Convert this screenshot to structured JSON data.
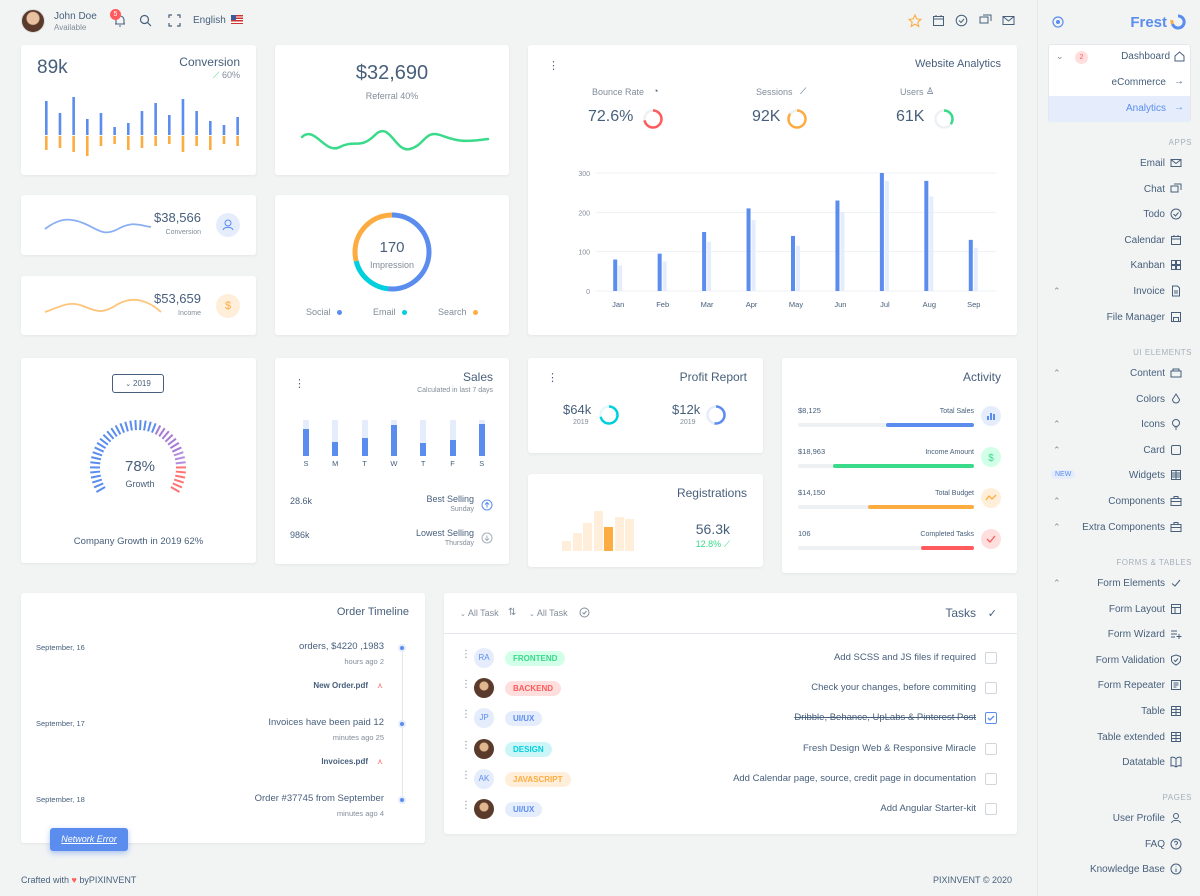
{
  "user": {
    "name": "John Doe",
    "status": "Available",
    "notifications": "5"
  },
  "topbar": {
    "language": "English"
  },
  "brand": {
    "name": "Frest"
  },
  "sidebar": {
    "dashboard": {
      "label": "Dashboard",
      "badge": "2"
    },
    "items_top": [
      {
        "label": "eCommerce"
      },
      {
        "label": "Analytics"
      }
    ],
    "apps_header": "APPS",
    "apps": [
      {
        "label": "Email",
        "icon": "mail-icon"
      },
      {
        "label": "Chat",
        "icon": "chat-icon"
      },
      {
        "label": "Todo",
        "icon": "check-circle-icon"
      },
      {
        "label": "Calendar",
        "icon": "calendar-icon"
      },
      {
        "label": "Kanban",
        "icon": "grid-icon"
      },
      {
        "label": "Invoice",
        "icon": "file-icon"
      },
      {
        "label": "File Manager",
        "icon": "save-icon"
      }
    ],
    "ui_header": "UI ELEMENTS",
    "ui": [
      {
        "label": "Content",
        "icon": "content-icon"
      },
      {
        "label": "Colors",
        "icon": "droplet-icon"
      },
      {
        "label": "Icons",
        "icon": "bulb-icon"
      },
      {
        "label": "Card",
        "icon": "square-icon"
      },
      {
        "label": "Widgets",
        "icon": "widgets-icon",
        "badge": "NEW"
      },
      {
        "label": "Components",
        "icon": "briefcase-icon"
      },
      {
        "label": "Extra Components",
        "icon": "briefcase-icon"
      }
    ],
    "forms_header": "FORMS & TABLES",
    "forms": [
      {
        "label": "Form Elements",
        "icon": "check-icon"
      },
      {
        "label": "Form Layout",
        "icon": "layout-icon"
      },
      {
        "label": "Form Wizard",
        "icon": "list-plus-icon"
      },
      {
        "label": "Form Validation",
        "icon": "shield-icon"
      },
      {
        "label": "Form Repeater",
        "icon": "repeater-icon"
      },
      {
        "label": "Table",
        "icon": "table-icon"
      },
      {
        "label": "Table extended",
        "icon": "table-icon"
      },
      {
        "label": "Datatable",
        "icon": "book-icon"
      }
    ],
    "pages_header": "PAGES",
    "pages": [
      {
        "label": "User Profile",
        "icon": "user-icon"
      },
      {
        "label": "FAQ",
        "icon": "help-icon"
      },
      {
        "label": "Knowledge Base",
        "icon": "info-icon"
      }
    ]
  },
  "conversion": {
    "value": "89k",
    "title": "Conversion",
    "pct": "60%",
    "bars_up": [
      34,
      22,
      38,
      16,
      22,
      8,
      12,
      24,
      32,
      20,
      36,
      24,
      14,
      10,
      18
    ],
    "bars_down": [
      14,
      12,
      16,
      20,
      10,
      8,
      14,
      12,
      10,
      8,
      16,
      10,
      14,
      8,
      10
    ]
  },
  "referral": {
    "value": "$32,690",
    "label": "Referral 40%"
  },
  "conv_small": {
    "value": "$38,566",
    "label": "Conversion"
  },
  "income": {
    "value": "$53,659",
    "label": "Income"
  },
  "impression": {
    "value": "170",
    "label": "Impression",
    "legend": [
      "Social",
      "Email",
      "Search"
    ]
  },
  "analytics": {
    "title": "Website Analytics",
    "stats": [
      {
        "label": "Bounce Rate",
        "value": "72.6%",
        "color": "#ff5b5c",
        "frac": 0.72
      },
      {
        "label": "Sessions",
        "value": "92K",
        "color": "#fdac41",
        "frac": 0.85
      },
      {
        "label": "Users",
        "value": "61K",
        "color": "#39da8a",
        "frac": 0.35
      }
    ]
  },
  "chart_data": {
    "type": "bar",
    "categories": [
      "Jan",
      "Feb",
      "Mar",
      "Apr",
      "May",
      "Jun",
      "Jul",
      "Aug",
      "Sep"
    ],
    "series": [
      {
        "values": [
          80,
          95,
          150,
          210,
          140,
          230,
          300,
          280,
          130
        ]
      },
      {
        "values": [
          65,
          75,
          125,
          180,
          115,
          200,
          280,
          240,
          110
        ]
      }
    ],
    "yticks": [
      "0",
      "100",
      "200",
      "300"
    ],
    "ylim": [
      0,
      300
    ],
    "grid": true
  },
  "growth": {
    "year": "2019",
    "value": "78%",
    "label": "Growth",
    "caption": "Company Growth in 2019 62%"
  },
  "sales": {
    "title": "Sales",
    "subtitle": "Calculated in last 7 days",
    "days": [
      "S",
      "M",
      "T",
      "W",
      "T",
      "F",
      "S"
    ],
    "fill": [
      0.75,
      0.4,
      0.5,
      0.85,
      0.35,
      0.45,
      0.9
    ],
    "best_value": "28.6k",
    "best_label": "Best Selling",
    "best_sub": "Sunday",
    "low_value": "986k",
    "low_label": "Lowest Selling",
    "low_sub": "Thursday"
  },
  "profit": {
    "title": "Profit Report",
    "a_value": "$64k",
    "a_year": "2019",
    "b_value": "$12k",
    "b_year": "2019"
  },
  "registrations": {
    "title": "Registrations",
    "value": "56.3k",
    "pct": "12.8%",
    "bars": [
      0.25,
      0.45,
      0.7,
      1.0,
      0.6,
      0.85,
      0.8
    ]
  },
  "activity": {
    "title": "Activity",
    "items": [
      {
        "value": "$8,125",
        "label": "Total Sales",
        "frac": 0.5,
        "color": "#5a8dee"
      },
      {
        "value": "$18,963",
        "label": "Income Amount",
        "frac": 0.8,
        "color": "#39da8a"
      },
      {
        "value": "$14,150",
        "label": "Total Budget",
        "frac": 0.6,
        "color": "#fdac41"
      },
      {
        "value": "106",
        "label": "Completed Tasks",
        "frac": 0.3,
        "color": "#ff5b5c"
      }
    ]
  },
  "timeline": {
    "title": "Order Timeline",
    "items": [
      {
        "date": "September, 16",
        "text": "orders, $4220 ,1983",
        "time": "hours ago 2",
        "file": "New Order.pdf"
      },
      {
        "date": "September, 17",
        "text": "Invoices have been paid 12",
        "time": "minutes ago 25",
        "file": "Invoices.pdf"
      },
      {
        "date": "September, 18",
        "text": "Order #37745 from September",
        "time": "minutes ago 4",
        "file": ""
      }
    ],
    "toast": "Network Error"
  },
  "tasks": {
    "title": "Tasks",
    "filter1": "All Task",
    "filter2": "All Task",
    "rows": [
      {
        "avatar": "RA",
        "chip": "FRONTEND",
        "chip_bg": "#d2ffe8",
        "chip_fg": "#39da8a",
        "text": "Add SCSS and JS files if required",
        "done": false
      },
      {
        "avatar": "",
        "chip": "BACKEND",
        "chip_bg": "#ffdede",
        "chip_fg": "#ff5b5c",
        "text": "Check your changes, before commiting",
        "done": false
      },
      {
        "avatar": "JP",
        "chip": "UI/UX",
        "chip_bg": "#e5edfc",
        "chip_fg": "#5a8dee",
        "text": "Dribble, Behance, UpLabs & Pinterest Post",
        "done": true
      },
      {
        "avatar": "",
        "chip": "DESIGN",
        "chip_bg": "#ccf5f8",
        "chip_fg": "#00cfdd",
        "text": "Fresh Design Web & Responsive Miracle",
        "done": false
      },
      {
        "avatar": "AK",
        "chip": "JAVASCRIPT",
        "chip_bg": "#ffeed9",
        "chip_fg": "#fdac41",
        "text": "Add Calendar page, source, credit page in documentation",
        "done": false
      },
      {
        "avatar": "",
        "chip": "UI/UX",
        "chip_bg": "#e5edfc",
        "chip_fg": "#5a8dee",
        "text": "Add Angular Starter-kit",
        "done": false
      }
    ]
  },
  "footer": {
    "left": "Crafted with",
    "by": "byPIXINVENT",
    "right": "PIXINVENT © 2020"
  }
}
